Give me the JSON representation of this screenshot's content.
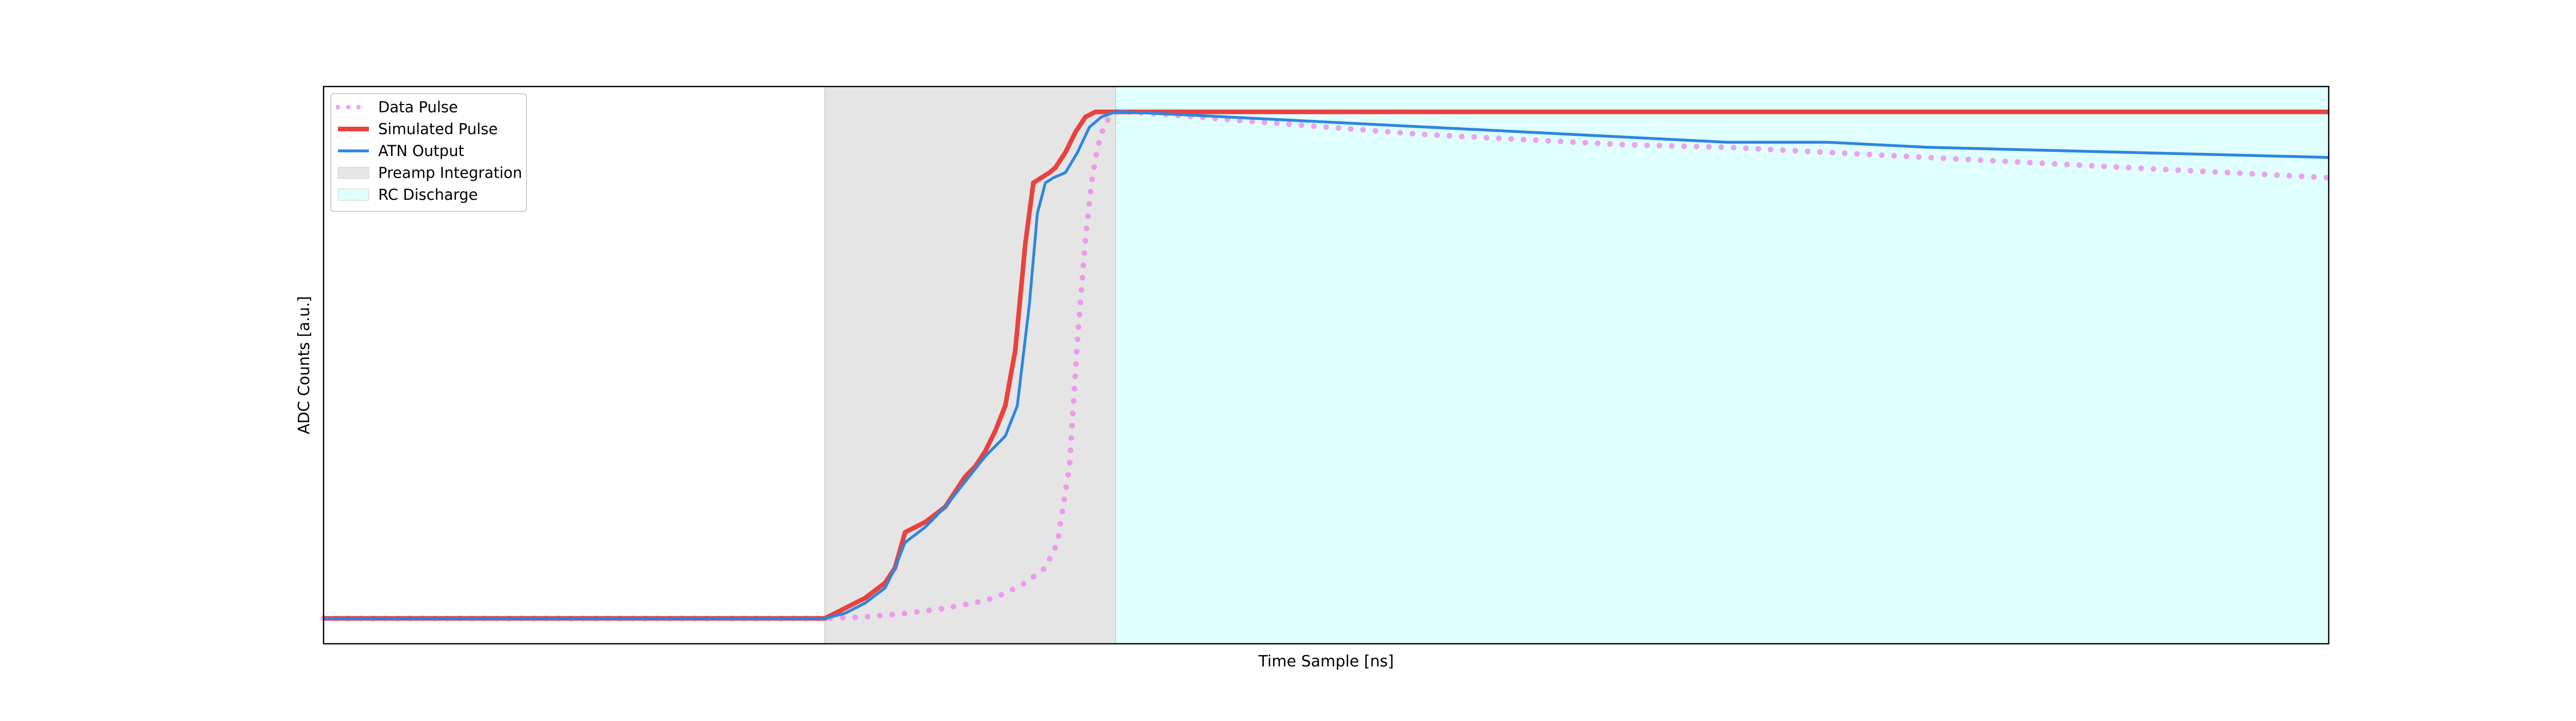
{
  "chart_data": {
    "type": "line",
    "title": "",
    "xlabel": "Time Sample [ns]",
    "ylabel": "ADC Counts [a.u.]",
    "xlim": [
      0,
      1000
    ],
    "ylim": [
      -0.05,
      1.05
    ],
    "grid": false,
    "legend_position": "top-left",
    "x_ticks_shown": false,
    "y_ticks_shown": false,
    "regions": [
      {
        "name": "Preamp Integration",
        "x_start": 250,
        "x_end": 395,
        "color": "#e5e5e5"
      },
      {
        "name": "RC Discharge",
        "x_start": 395,
        "x_end": 1000,
        "color": "#e0ffff"
      }
    ],
    "series": [
      {
        "name": "Data Pulse",
        "style": "dotted",
        "color": "#ee82ee",
        "x": [
          0,
          100,
          200,
          250,
          270,
          290,
          310,
          330,
          340,
          350,
          360,
          366,
          372,
          376,
          380,
          383,
          386,
          389,
          392,
          395,
          400,
          420,
          450,
          500,
          550,
          600,
          650,
          700,
          750,
          800,
          850,
          900,
          950,
          1000
        ],
        "y": [
          0.0,
          0.0,
          0.0,
          0.0,
          0.003,
          0.01,
          0.02,
          0.035,
          0.05,
          0.07,
          0.1,
          0.15,
          0.3,
          0.55,
          0.75,
          0.86,
          0.93,
          0.97,
          0.99,
          1.0,
          1.0,
          0.995,
          0.985,
          0.97,
          0.955,
          0.945,
          0.935,
          0.93,
          0.92,
          0.91,
          0.9,
          0.89,
          0.88,
          0.87
        ]
      },
      {
        "name": "Simulated Pulse",
        "style": "solid",
        "color": "#e8423f",
        "x": [
          0,
          100,
          200,
          250,
          260,
          270,
          280,
          285,
          290,
          295,
          300,
          310,
          320,
          325,
          330,
          335,
          340,
          345,
          350,
          354,
          358,
          362,
          365,
          370,
          375,
          380,
          385,
          390,
          395,
          400,
          500,
          600,
          700,
          800,
          900,
          1000
        ],
        "y": [
          0.0,
          0.0,
          0.0,
          0.0,
          0.02,
          0.04,
          0.07,
          0.1,
          0.17,
          0.18,
          0.19,
          0.22,
          0.28,
          0.3,
          0.33,
          0.37,
          0.42,
          0.53,
          0.74,
          0.86,
          0.87,
          0.88,
          0.89,
          0.92,
          0.96,
          0.99,
          1.0,
          1.0,
          1.0,
          1.0,
          1.0,
          1.0,
          1.0,
          1.0,
          1.0,
          1.0
        ]
      },
      {
        "name": "ATN Output",
        "style": "solid",
        "color": "#2e86de",
        "x": [
          0,
          100,
          200,
          250,
          260,
          270,
          280,
          285,
          290,
          300,
          310,
          320,
          330,
          340,
          346,
          352,
          356,
          360,
          364,
          370,
          376,
          382,
          388,
          395,
          400,
          450,
          500,
          550,
          600,
          650,
          700,
          750,
          800,
          850,
          900,
          950,
          1000
        ],
        "y": [
          0.0,
          0.0,
          0.0,
          0.0,
          0.01,
          0.03,
          0.06,
          0.1,
          0.15,
          0.18,
          0.22,
          0.27,
          0.32,
          0.36,
          0.42,
          0.62,
          0.8,
          0.86,
          0.87,
          0.88,
          0.92,
          0.97,
          0.99,
          1.0,
          1.0,
          0.99,
          0.98,
          0.97,
          0.96,
          0.95,
          0.94,
          0.94,
          0.93,
          0.925,
          0.92,
          0.915,
          0.91
        ]
      }
    ]
  }
}
